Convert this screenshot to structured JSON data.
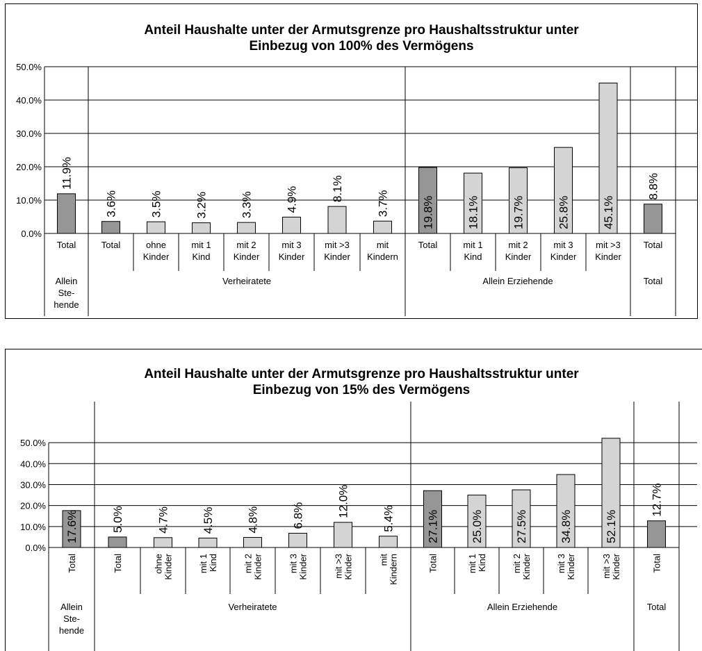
{
  "colors": {
    "dark_bar": "#969696",
    "light_bar": "#d4d4d4",
    "grid": "#000000"
  },
  "chart_data": [
    {
      "type": "bar",
      "title": "Anteil Haushalte unter der Armutsgrenze pro Haushaltsstruktur unter Einbezug von 100% des Vermögens",
      "title_lines": [
        "Anteil Haushalte unter der Armutsgrenze pro Haushaltsstruktur unter",
        "Einbezug von 100% des Vermögens"
      ],
      "ylim": [
        0,
        50
      ],
      "yticks": [
        "0.0%",
        "10.0%",
        "20.0%",
        "30.0%",
        "40.0%",
        "50.0%"
      ],
      "categories": [
        [
          "Total"
        ],
        [
          "Total"
        ],
        [
          "ohne",
          "Kinder"
        ],
        [
          "mit 1",
          "Kind"
        ],
        [
          "mit 2",
          "Kinder"
        ],
        [
          "mit 3",
          "Kinder"
        ],
        [
          "mit >3",
          "Kinder"
        ],
        [
          "mit",
          "Kindern"
        ],
        [
          "Total"
        ],
        [
          "mit 1",
          "Kind"
        ],
        [
          "mit 2",
          "Kinder"
        ],
        [
          "mit 3",
          "Kinder"
        ],
        [
          "mit >3",
          "Kinder"
        ],
        [
          "Total"
        ]
      ],
      "values": [
        11.9,
        3.6,
        3.5,
        3.2,
        3.3,
        4.9,
        8.1,
        3.7,
        19.8,
        18.1,
        19.7,
        25.8,
        45.1,
        8.8
      ],
      "value_labels": [
        "11.9%",
        "3.6%",
        "3.5%",
        "3.2%",
        "3.3%",
        "4.9%",
        "8.1%",
        "3.7%",
        "19.8%",
        "18.1%",
        "19.7%",
        "25.8%",
        "45.1%",
        "8.8%"
      ],
      "dark": [
        true,
        true,
        false,
        false,
        false,
        false,
        false,
        false,
        true,
        false,
        false,
        false,
        false,
        true
      ],
      "groups": [
        {
          "label": [
            "Allein",
            "Ste-",
            "hende"
          ],
          "span": 1
        },
        {
          "label": [
            "Verheiratete"
          ],
          "span": 7
        },
        {
          "label": [
            "Allein Erziehende"
          ],
          "span": 5
        },
        {
          "label": [
            "Total"
          ],
          "span": 1
        }
      ],
      "grid": true,
      "legend": "none"
    },
    {
      "type": "bar",
      "title": "Anteil Haushalte unter der Armutsgrenze pro Haushaltsstruktur unter Einbezug von 15% des Vermögens",
      "title_lines": [
        "Anteil Haushalte unter der Armutsgrenze pro Haushaltsstruktur unter",
        "Einbezug von 15% des Vermögens"
      ],
      "ylim": [
        0,
        50
      ],
      "yticks": [
        "0.0%",
        "10.0%",
        "20.0%",
        "30.0%",
        "40.0%",
        "50.0%"
      ],
      "categories": [
        [
          "Total"
        ],
        [
          "Total"
        ],
        [
          "ohne",
          "Kinder"
        ],
        [
          "mit 1",
          "Kind"
        ],
        [
          "mit 2",
          "Kinder"
        ],
        [
          "mit 3",
          "Kinder"
        ],
        [
          "mit >3",
          "Kinder"
        ],
        [
          "mit",
          "Kindern"
        ],
        [
          "Total"
        ],
        [
          "mit 1",
          "Kind"
        ],
        [
          "mit 2",
          "Kinder"
        ],
        [
          "mit 3",
          "Kinder"
        ],
        [
          "mit >3",
          "Kinder"
        ],
        [
          "Total"
        ]
      ],
      "values": [
        17.6,
        5.0,
        4.7,
        4.5,
        4.8,
        6.8,
        12.0,
        5.4,
        27.1,
        25.0,
        27.5,
        34.8,
        52.1,
        12.7
      ],
      "value_labels": [
        "17.6%",
        "5.0%",
        "4.7%",
        "4.5%",
        "4.8%",
        "6.8%",
        "12.0%",
        "5.4%",
        "27.1%",
        "25.0%",
        "27.5%",
        "34.8%",
        "52.1%",
        "12.7%"
      ],
      "dark": [
        true,
        true,
        false,
        false,
        false,
        false,
        false,
        false,
        true,
        false,
        false,
        false,
        false,
        true
      ],
      "groups": [
        {
          "label": [
            "Allein",
            "Ste-",
            "hende"
          ],
          "span": 1
        },
        {
          "label": [
            "Verheiratete"
          ],
          "span": 7
        },
        {
          "label": [
            "Allein Erziehende"
          ],
          "span": 5
        },
        {
          "label": [
            "Total"
          ],
          "span": 1
        }
      ],
      "grid": true,
      "legend": "none"
    }
  ]
}
